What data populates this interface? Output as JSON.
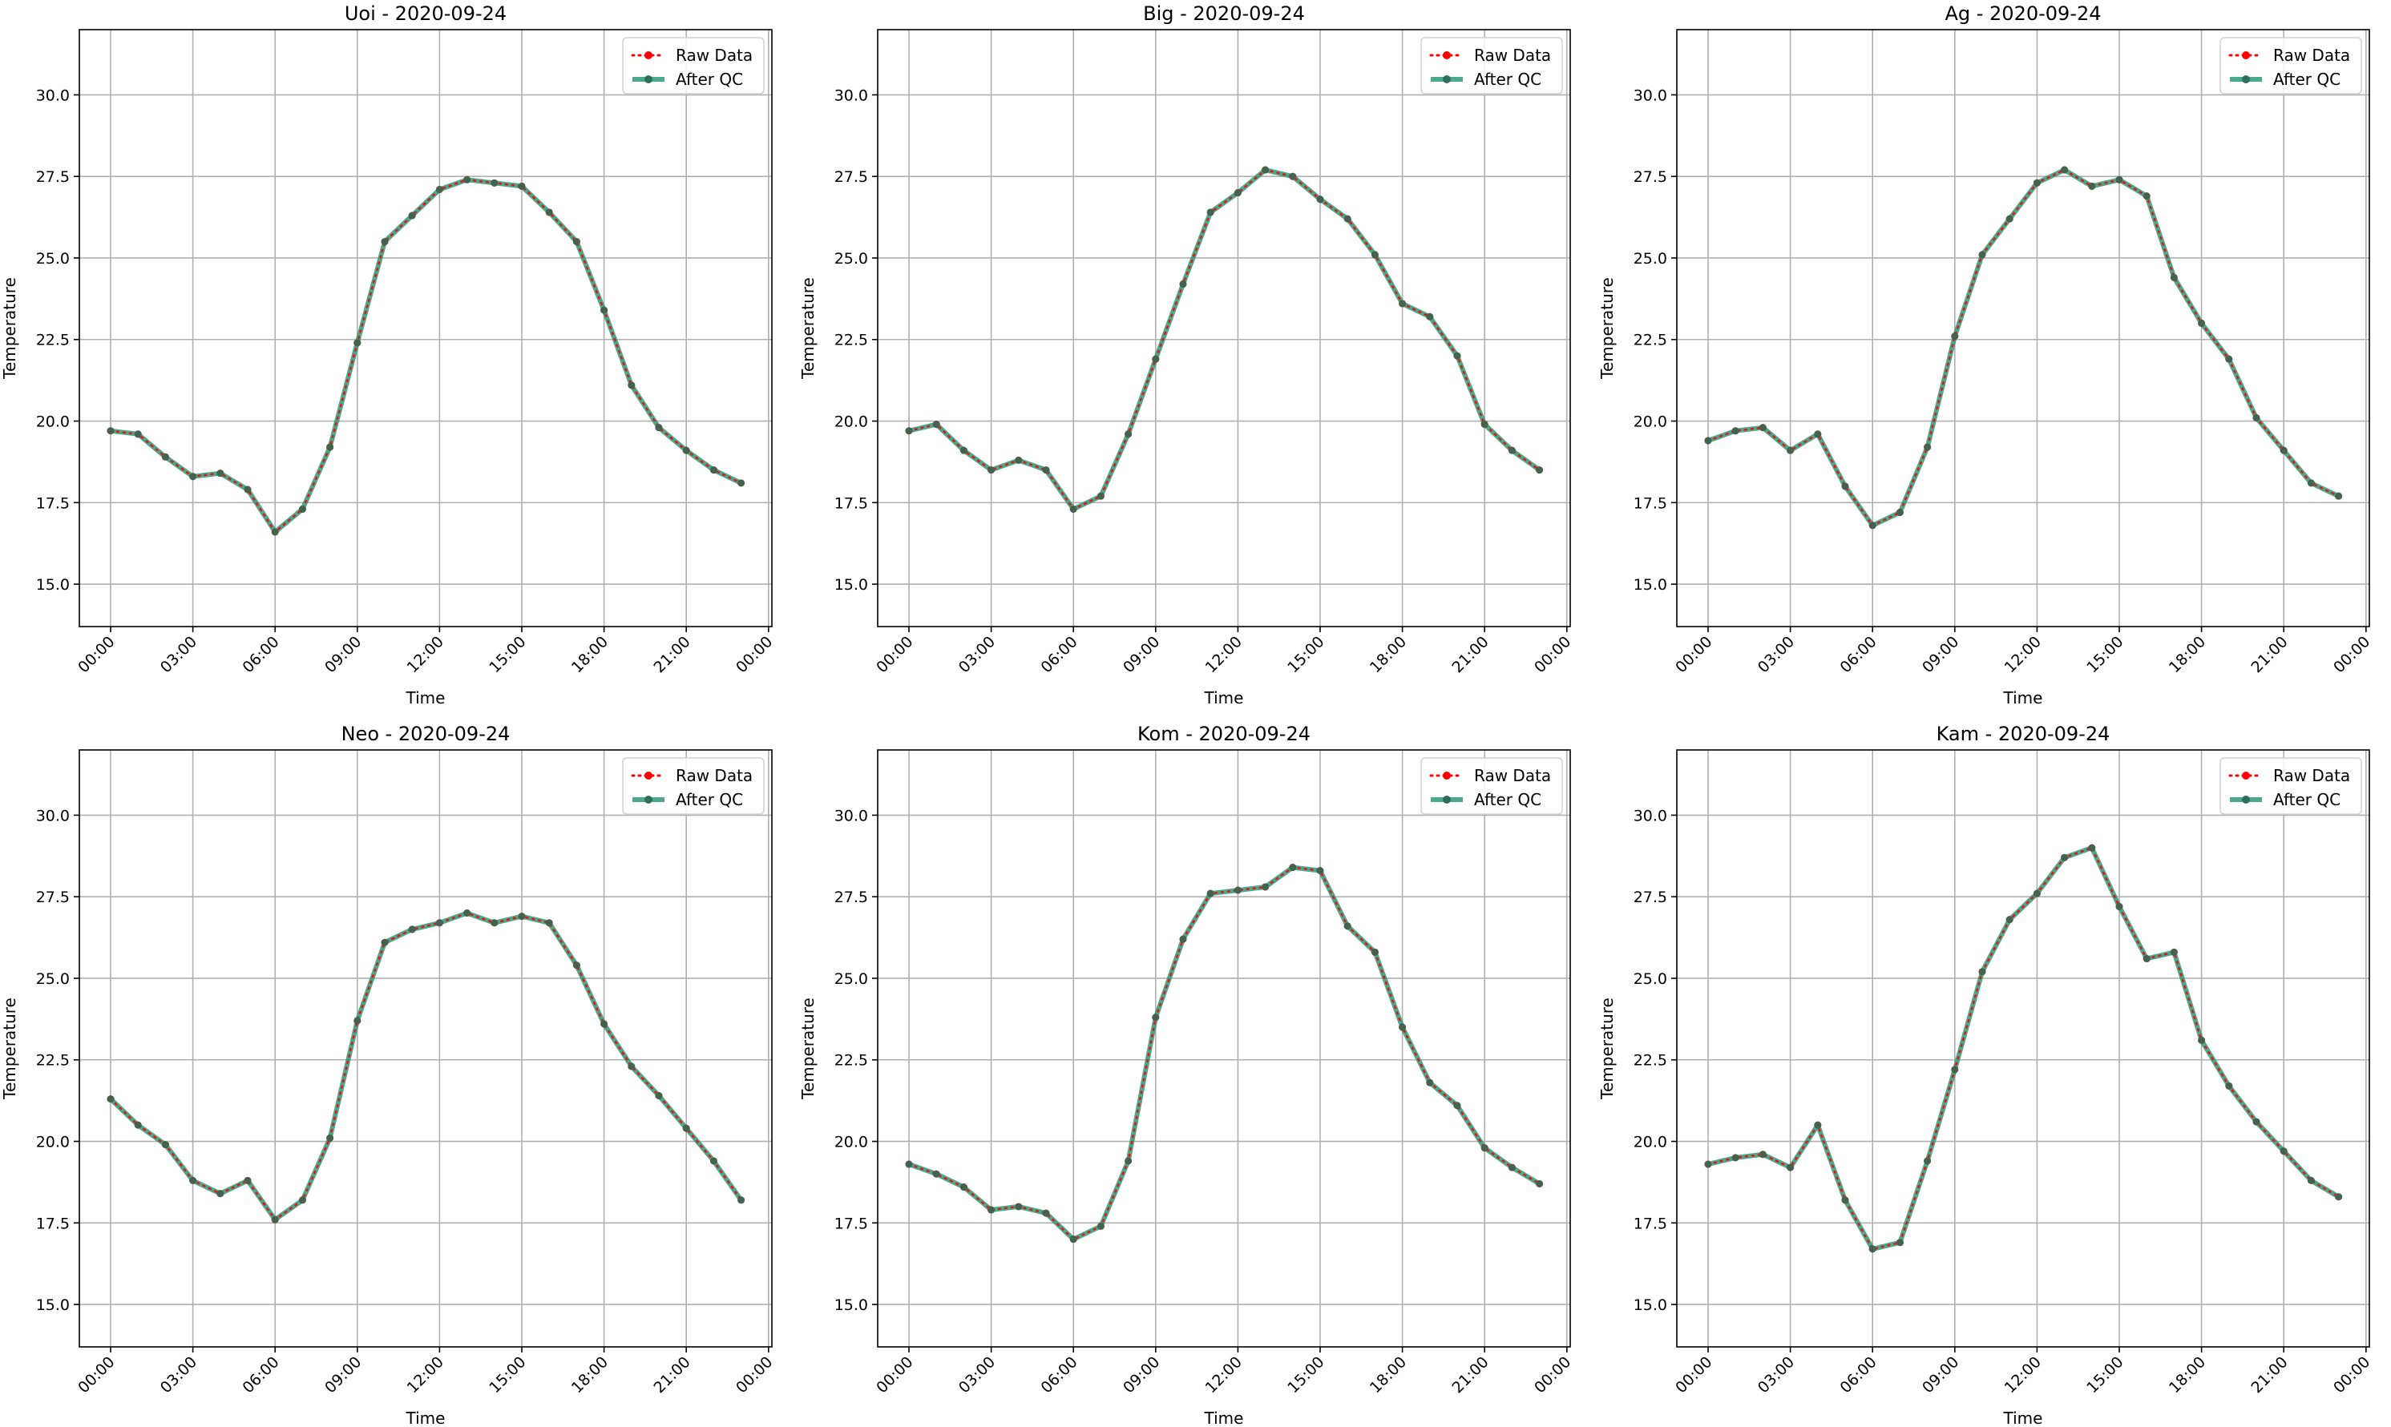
{
  "chart_data": [
    {
      "type": "line",
      "title": "Uoi - 2020-09-24",
      "xlabel": "Time",
      "ylabel": "Temperature",
      "x": [
        "00:00",
        "01:00",
        "02:00",
        "03:00",
        "04:00",
        "05:00",
        "06:00",
        "07:00",
        "08:00",
        "09:00",
        "10:00",
        "11:00",
        "12:00",
        "13:00",
        "14:00",
        "15:00",
        "16:00",
        "17:00",
        "18:00",
        "19:00",
        "20:00",
        "21:00",
        "22:00",
        "23:00"
      ],
      "series": [
        {
          "name": "Raw Data",
          "values": [
            19.7,
            19.6,
            18.9,
            18.3,
            18.4,
            17.9,
            16.6,
            17.3,
            19.2,
            22.4,
            25.5,
            26.3,
            27.1,
            27.4,
            27.3,
            27.2,
            26.4,
            25.5,
            23.4,
            21.1,
            19.8,
            19.1,
            18.5,
            18.1
          ]
        },
        {
          "name": "After QC",
          "values": [
            19.7,
            19.6,
            18.9,
            18.3,
            18.4,
            17.9,
            16.6,
            17.3,
            19.2,
            22.4,
            25.5,
            26.3,
            27.1,
            27.4,
            27.3,
            27.2,
            26.4,
            25.5,
            23.4,
            21.1,
            19.8,
            19.1,
            18.5,
            18.1
          ]
        }
      ],
      "xticks": [
        "00:00",
        "03:00",
        "06:00",
        "09:00",
        "12:00",
        "15:00",
        "18:00",
        "21:00",
        "00:00"
      ],
      "yticks": [
        "15.0",
        "17.5",
        "20.0",
        "22.5",
        "25.0",
        "27.5",
        "30.0"
      ],
      "ylim": [
        13.7,
        32.0
      ],
      "grid": true,
      "legend": "upper right"
    },
    {
      "type": "line",
      "title": "Big - 2020-09-24",
      "xlabel": "Time",
      "ylabel": "Temperature",
      "x": [
        "00:00",
        "01:00",
        "02:00",
        "03:00",
        "04:00",
        "05:00",
        "06:00",
        "07:00",
        "08:00",
        "09:00",
        "10:00",
        "11:00",
        "12:00",
        "13:00",
        "14:00",
        "15:00",
        "16:00",
        "17:00",
        "18:00",
        "19:00",
        "20:00",
        "21:00",
        "22:00",
        "23:00"
      ],
      "series": [
        {
          "name": "Raw Data",
          "values": [
            19.7,
            19.9,
            19.1,
            18.5,
            18.8,
            18.5,
            17.3,
            17.7,
            19.6,
            21.9,
            24.2,
            26.4,
            27.0,
            27.7,
            27.5,
            26.8,
            26.2,
            25.1,
            23.6,
            23.2,
            22.0,
            19.9,
            19.1,
            18.5
          ]
        },
        {
          "name": "After QC",
          "values": [
            19.7,
            19.9,
            19.1,
            18.5,
            18.8,
            18.5,
            17.3,
            17.7,
            19.6,
            21.9,
            24.2,
            26.4,
            27.0,
            27.7,
            27.5,
            26.8,
            26.2,
            25.1,
            23.6,
            23.2,
            22.0,
            19.9,
            19.1,
            18.5
          ]
        }
      ],
      "xticks": [
        "00:00",
        "03:00",
        "06:00",
        "09:00",
        "12:00",
        "15:00",
        "18:00",
        "21:00",
        "00:00"
      ],
      "yticks": [
        "15.0",
        "17.5",
        "20.0",
        "22.5",
        "25.0",
        "27.5",
        "30.0"
      ],
      "ylim": [
        13.7,
        32.0
      ],
      "grid": true,
      "legend": "upper right"
    },
    {
      "type": "line",
      "title": "Ag - 2020-09-24",
      "xlabel": "Time",
      "ylabel": "Temperature",
      "x": [
        "00:00",
        "01:00",
        "02:00",
        "03:00",
        "04:00",
        "05:00",
        "06:00",
        "07:00",
        "08:00",
        "09:00",
        "10:00",
        "11:00",
        "12:00",
        "13:00",
        "14:00",
        "15:00",
        "16:00",
        "17:00",
        "18:00",
        "19:00",
        "20:00",
        "21:00",
        "22:00",
        "23:00"
      ],
      "series": [
        {
          "name": "Raw Data",
          "values": [
            19.4,
            19.7,
            19.8,
            19.1,
            19.6,
            18.0,
            16.8,
            17.2,
            19.2,
            22.6,
            25.1,
            26.2,
            27.3,
            27.7,
            27.2,
            27.4,
            26.9,
            24.4,
            23.0,
            21.9,
            20.1,
            19.1,
            18.1,
            17.7
          ]
        },
        {
          "name": "After QC",
          "values": [
            19.4,
            19.7,
            19.8,
            19.1,
            19.6,
            18.0,
            16.8,
            17.2,
            19.2,
            22.6,
            25.1,
            26.2,
            27.3,
            27.7,
            27.2,
            27.4,
            26.9,
            24.4,
            23.0,
            21.9,
            20.1,
            19.1,
            18.1,
            17.7
          ]
        }
      ],
      "xticks": [
        "00:00",
        "03:00",
        "06:00",
        "09:00",
        "12:00",
        "15:00",
        "18:00",
        "21:00",
        "00:00"
      ],
      "yticks": [
        "15.0",
        "17.5",
        "20.0",
        "22.5",
        "25.0",
        "27.5",
        "30.0"
      ],
      "ylim": [
        13.7,
        32.0
      ],
      "grid": true,
      "legend": "upper right"
    },
    {
      "type": "line",
      "title": "Neo - 2020-09-24",
      "xlabel": "Time",
      "ylabel": "Temperature",
      "x": [
        "00:00",
        "01:00",
        "02:00",
        "03:00",
        "04:00",
        "05:00",
        "06:00",
        "07:00",
        "08:00",
        "09:00",
        "10:00",
        "11:00",
        "12:00",
        "13:00",
        "14:00",
        "15:00",
        "16:00",
        "17:00",
        "18:00",
        "19:00",
        "20:00",
        "21:00",
        "22:00",
        "23:00"
      ],
      "series": [
        {
          "name": "Raw Data",
          "values": [
            21.3,
            20.5,
            19.9,
            18.8,
            18.4,
            18.8,
            17.6,
            18.2,
            20.1,
            23.7,
            26.1,
            26.5,
            26.7,
            27.0,
            26.7,
            26.9,
            26.7,
            25.4,
            23.6,
            22.3,
            21.4,
            20.4,
            19.4,
            18.2
          ]
        },
        {
          "name": "After QC",
          "values": [
            21.3,
            20.5,
            19.9,
            18.8,
            18.4,
            18.8,
            17.6,
            18.2,
            20.1,
            23.7,
            26.1,
            26.5,
            26.7,
            27.0,
            26.7,
            26.9,
            26.7,
            25.4,
            23.6,
            22.3,
            21.4,
            20.4,
            19.4,
            18.2
          ]
        }
      ],
      "xticks": [
        "00:00",
        "03:00",
        "06:00",
        "09:00",
        "12:00",
        "15:00",
        "18:00",
        "21:00",
        "00:00"
      ],
      "yticks": [
        "15.0",
        "17.5",
        "20.0",
        "22.5",
        "25.0",
        "27.5",
        "30.0"
      ],
      "ylim": [
        13.7,
        32.0
      ],
      "grid": true,
      "legend": "upper right"
    },
    {
      "type": "line",
      "title": "Kom - 2020-09-24",
      "xlabel": "Time",
      "ylabel": "Temperature",
      "x": [
        "00:00",
        "01:00",
        "02:00",
        "03:00",
        "04:00",
        "05:00",
        "06:00",
        "07:00",
        "08:00",
        "09:00",
        "10:00",
        "11:00",
        "12:00",
        "13:00",
        "14:00",
        "15:00",
        "16:00",
        "17:00",
        "18:00",
        "19:00",
        "20:00",
        "21:00",
        "22:00",
        "23:00"
      ],
      "series": [
        {
          "name": "Raw Data",
          "values": [
            19.3,
            19.0,
            18.6,
            17.9,
            18.0,
            17.8,
            17.0,
            17.4,
            19.4,
            23.8,
            26.2,
            27.6,
            27.7,
            27.8,
            28.4,
            28.3,
            26.6,
            25.8,
            23.5,
            21.8,
            21.1,
            19.8,
            19.2,
            18.7
          ]
        },
        {
          "name": "After QC",
          "values": [
            19.3,
            19.0,
            18.6,
            17.9,
            18.0,
            17.8,
            17.0,
            17.4,
            19.4,
            23.8,
            26.2,
            27.6,
            27.7,
            27.8,
            28.4,
            28.3,
            26.6,
            25.8,
            23.5,
            21.8,
            21.1,
            19.8,
            19.2,
            18.7
          ]
        }
      ],
      "xticks": [
        "00:00",
        "03:00",
        "06:00",
        "09:00",
        "12:00",
        "15:00",
        "18:00",
        "21:00",
        "00:00"
      ],
      "yticks": [
        "15.0",
        "17.5",
        "20.0",
        "22.5",
        "25.0",
        "27.5",
        "30.0"
      ],
      "ylim": [
        13.7,
        32.0
      ],
      "grid": true,
      "legend": "upper right"
    },
    {
      "type": "line",
      "title": "Kam - 2020-09-24",
      "xlabel": "Time",
      "ylabel": "Temperature",
      "x": [
        "00:00",
        "01:00",
        "02:00",
        "03:00",
        "04:00",
        "05:00",
        "06:00",
        "07:00",
        "08:00",
        "09:00",
        "10:00",
        "11:00",
        "12:00",
        "13:00",
        "14:00",
        "15:00",
        "16:00",
        "17:00",
        "18:00",
        "19:00",
        "20:00",
        "21:00",
        "22:00",
        "23:00"
      ],
      "series": [
        {
          "name": "Raw Data",
          "values": [
            19.3,
            19.5,
            19.6,
            19.2,
            20.5,
            18.2,
            16.7,
            16.9,
            19.4,
            22.2,
            25.2,
            26.8,
            27.6,
            28.7,
            29.0,
            27.2,
            25.6,
            25.8,
            23.1,
            21.7,
            20.6,
            19.7,
            18.8,
            18.3
          ]
        },
        {
          "name": "After QC",
          "values": [
            19.3,
            19.5,
            19.6,
            19.2,
            20.5,
            18.2,
            16.7,
            16.9,
            19.4,
            22.2,
            25.2,
            26.8,
            27.6,
            28.7,
            29.0,
            27.2,
            25.6,
            25.8,
            23.1,
            21.7,
            20.6,
            19.7,
            18.8,
            18.3
          ]
        }
      ],
      "xticks": [
        "00:00",
        "03:00",
        "06:00",
        "09:00",
        "12:00",
        "15:00",
        "18:00",
        "21:00",
        "00:00"
      ],
      "yticks": [
        "15.0",
        "17.5",
        "20.0",
        "22.5",
        "25.0",
        "27.5",
        "30.0"
      ],
      "ylim": [
        13.7,
        32.0
      ],
      "grid": true,
      "legend": "upper right"
    }
  ],
  "styles": {
    "raw_color": "#ff0000",
    "qc_color": "#2a9a78",
    "grid_color": "#b0b0b0"
  }
}
